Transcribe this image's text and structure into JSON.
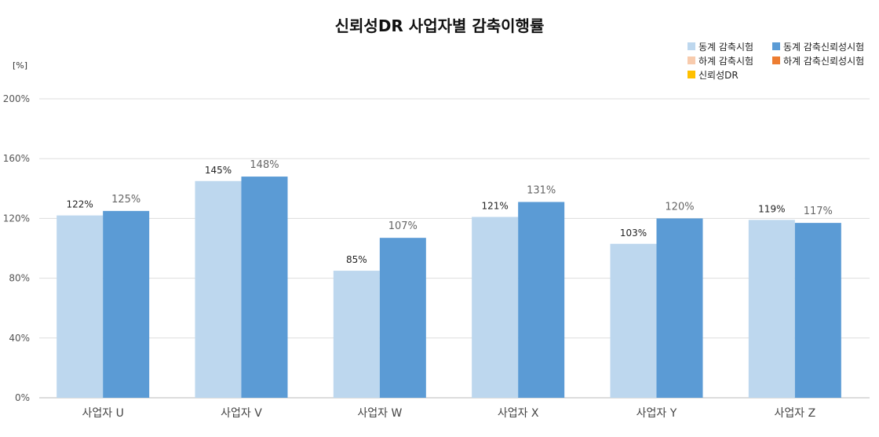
{
  "chart_data": {
    "type": "bar",
    "title": "신뢰성DR 사업자별 감축이행률",
    "unit_label": "[%]",
    "categories": [
      "사업자 U",
      "사업자 V",
      "사업자 W",
      "사업자 X",
      "사업자 Y",
      "사업자 Z"
    ],
    "series": [
      {
        "name": "동계 감축시험",
        "color": "#bdd7ee",
        "values": [
          122,
          145,
          85,
          121,
          103,
          119
        ],
        "labels": [
          "122%",
          "145%",
          "85%",
          "121%",
          "103%",
          "119%"
        ]
      },
      {
        "name": "동계 감축신뢰성시험",
        "color": "#5b9bd5",
        "values": [
          125,
          148,
          107,
          131,
          120,
          117
        ],
        "labels": [
          "125%",
          "148%",
          "107%",
          "131%",
          "120%",
          "117%"
        ]
      },
      {
        "name": "하계 감축시험",
        "color": "#f8cbad",
        "values": [
          null,
          null,
          null,
          null,
          null,
          null
        ]
      },
      {
        "name": "하계 감축신뢰성시험",
        "color": "#ed7d31",
        "values": [
          null,
          null,
          null,
          null,
          null,
          null
        ]
      },
      {
        "name": "신뢰성DR",
        "color": "#ffc000",
        "values": [
          null,
          null,
          null,
          null,
          null,
          null
        ]
      }
    ],
    "legend_order": [
      0,
      1,
      2,
      3,
      4
    ],
    "legend_position": "top-right",
    "ylim": [
      0,
      200
    ],
    "yticks": [
      0,
      40,
      80,
      120,
      160,
      200
    ],
    "ytick_labels": [
      "0%",
      "40%",
      "80%",
      "120%",
      "160%",
      "200%"
    ],
    "grid": true
  }
}
